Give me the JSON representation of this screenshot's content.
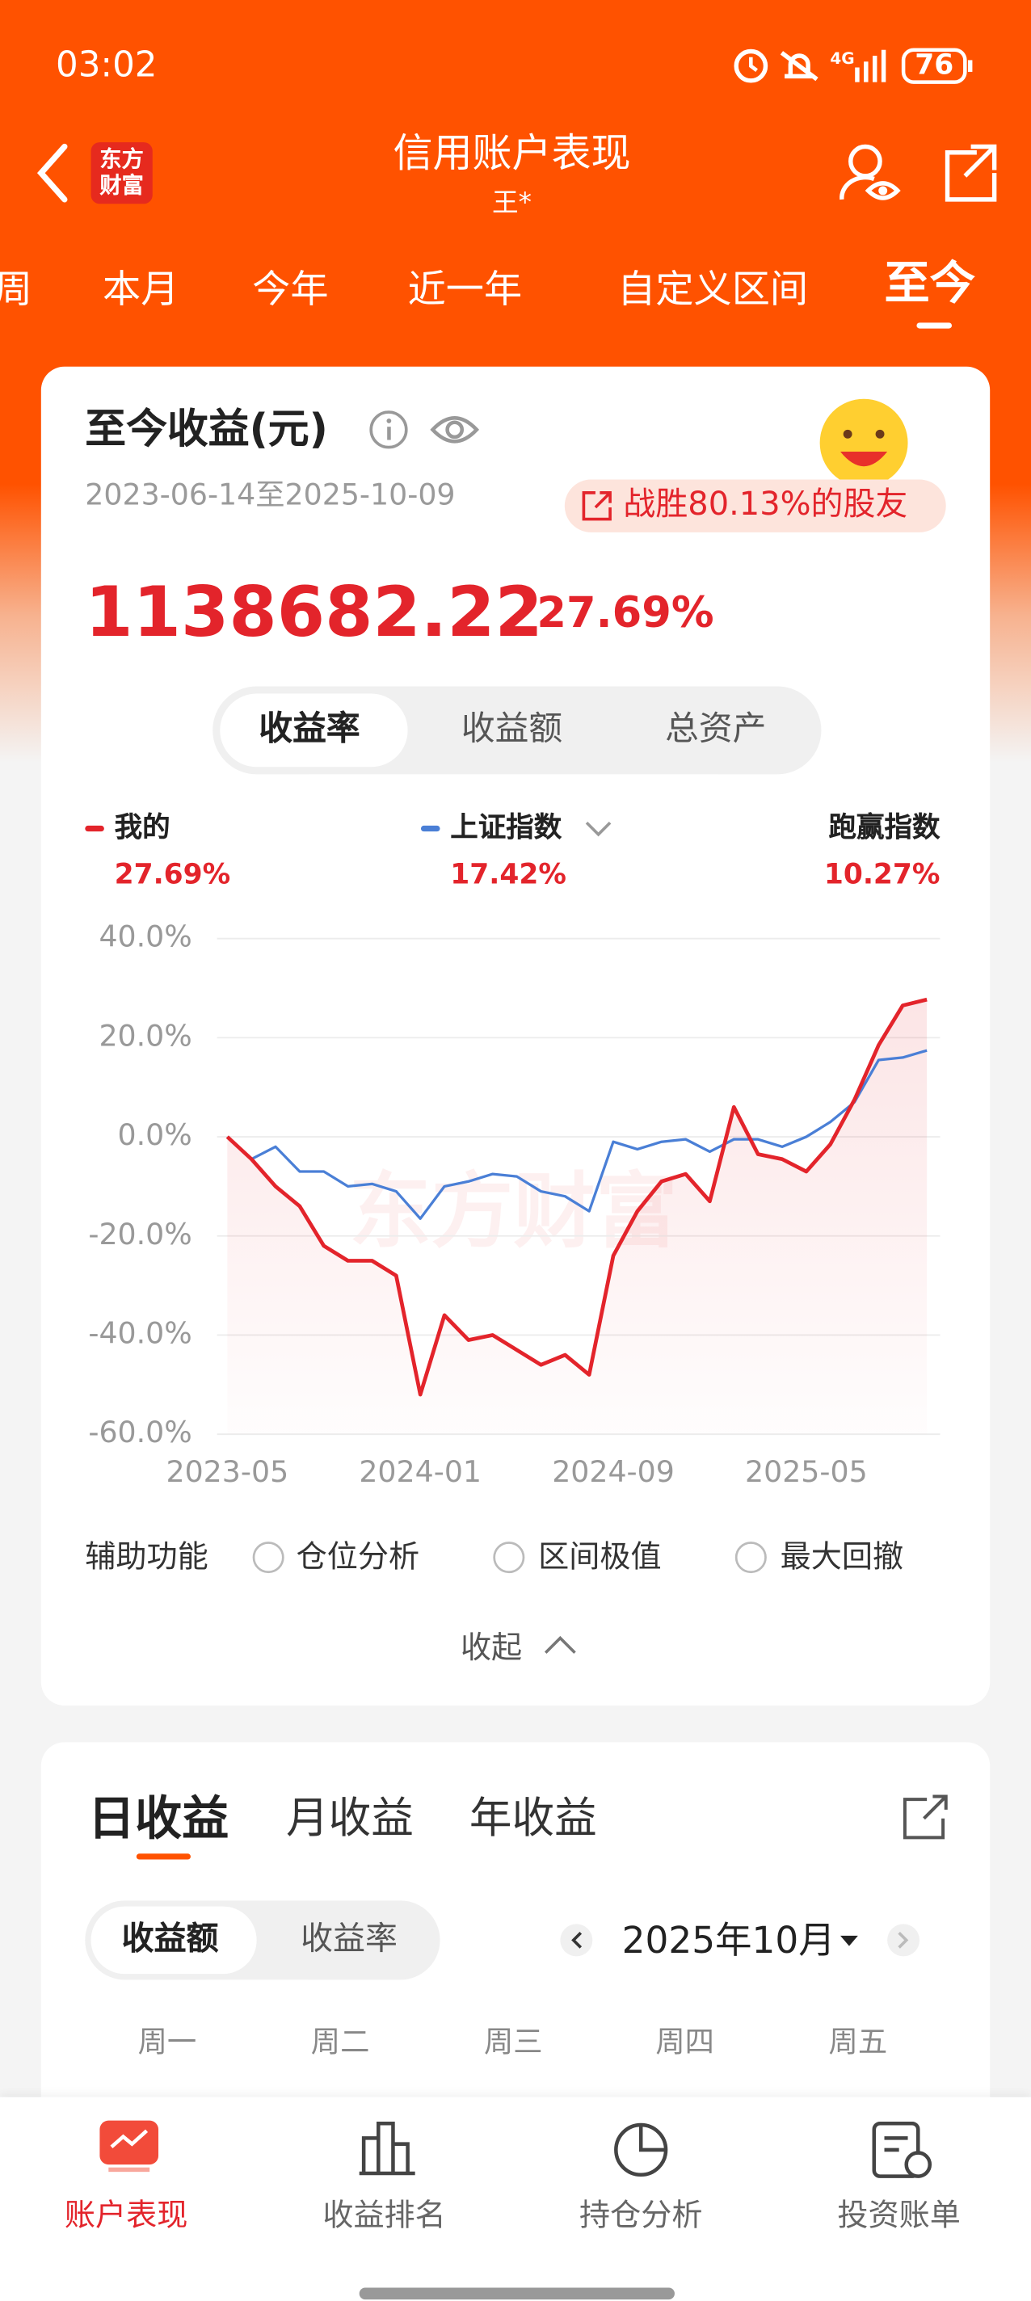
{
  "status_bar": {
    "time": "03:02",
    "network": "4G",
    "battery": "76"
  },
  "header": {
    "logo_lines": [
      "东方",
      "财富"
    ],
    "title": "信用账户表现",
    "subtitle": "王*"
  },
  "period_tabs": [
    "周",
    "本月",
    "今年",
    "近一年",
    "自定义区间",
    "至今"
  ],
  "summary": {
    "title": "至今收益(元)",
    "date_range": "2023-06-14至2025-10-09",
    "badge": "战胜80.13%的股友",
    "amount": "1138682.22",
    "return": "27.69%"
  },
  "chart_tabs": [
    "收益率",
    "收益额",
    "总资产"
  ],
  "legend_values": [
    "27.69%",
    "17.42%"
  ],
  "outperform": {
    "label": "跑赢指数",
    "value": "10.27%"
  },
  "chart_data": {
    "type": "line",
    "watermark": "东方财富",
    "x": [
      0,
      1,
      2,
      3,
      4,
      5,
      6,
      7,
      8,
      9,
      10,
      11,
      12,
      13,
      14,
      15,
      16,
      17,
      18,
      19,
      20,
      21,
      22,
      23,
      24,
      25,
      26,
      27,
      28,
      29
    ],
    "xlim": [
      0,
      29
    ],
    "xticks": [
      {
        "value": 0,
        "label": "2023-05"
      },
      {
        "value": 8,
        "label": "2024-01"
      },
      {
        "value": 16,
        "label": "2024-09"
      },
      {
        "value": 24,
        "label": "2025-05"
      }
    ],
    "ylim": [
      -60,
      40
    ],
    "yticks": [
      {
        "value": -60,
        "label": "-60.0%"
      },
      {
        "value": -40,
        "label": "-40.0%"
      },
      {
        "value": -20,
        "label": "-20.0%"
      },
      {
        "value": 0,
        "label": "0.0%"
      },
      {
        "value": 20,
        "label": "20.0%"
      },
      {
        "value": 40,
        "label": "40.0%"
      }
    ],
    "grid": true,
    "series": [
      {
        "name": "我的",
        "color": "#e3242b",
        "values": [
          0,
          -4.5,
          -10,
          -14,
          -22,
          -25,
          -25,
          -28,
          -52,
          -36,
          -41,
          -40,
          -43,
          -46,
          -44,
          -48,
          -24,
          -15,
          -9,
          -7.5,
          -13,
          6,
          -3.5,
          -4.5,
          -7,
          -1.5,
          7.5,
          18.5,
          26.5,
          27.69
        ]
      },
      {
        "name": "上证指数",
        "color": "#4a7fd6",
        "values": [
          0,
          -4.5,
          -2,
          -7,
          -7,
          -10,
          -9.5,
          -11,
          -16.5,
          -10,
          -9,
          -7.5,
          -8,
          -11,
          -12,
          -15,
          -1,
          -2.5,
          -1,
          -0.5,
          -3,
          -0.5,
          -0.5,
          -2,
          0,
          3,
          7,
          15.5,
          16,
          17.42
        ]
      }
    ]
  },
  "tools": {
    "label": "辅助功能",
    "options": [
      "仓位分析",
      "区间极值",
      "最大回撤"
    ],
    "collapse": "收起"
  },
  "returns_card": {
    "tabs": [
      "日收益",
      "月收益",
      "年收益"
    ],
    "toggle": [
      "收益额",
      "收益率"
    ],
    "month": "2025年10月",
    "weekdays": [
      "周一",
      "周二",
      "周三",
      "周四",
      "周五"
    ]
  },
  "bottom_nav": [
    "账户表现",
    "收益排名",
    "持仓分析",
    "投资账单"
  ]
}
